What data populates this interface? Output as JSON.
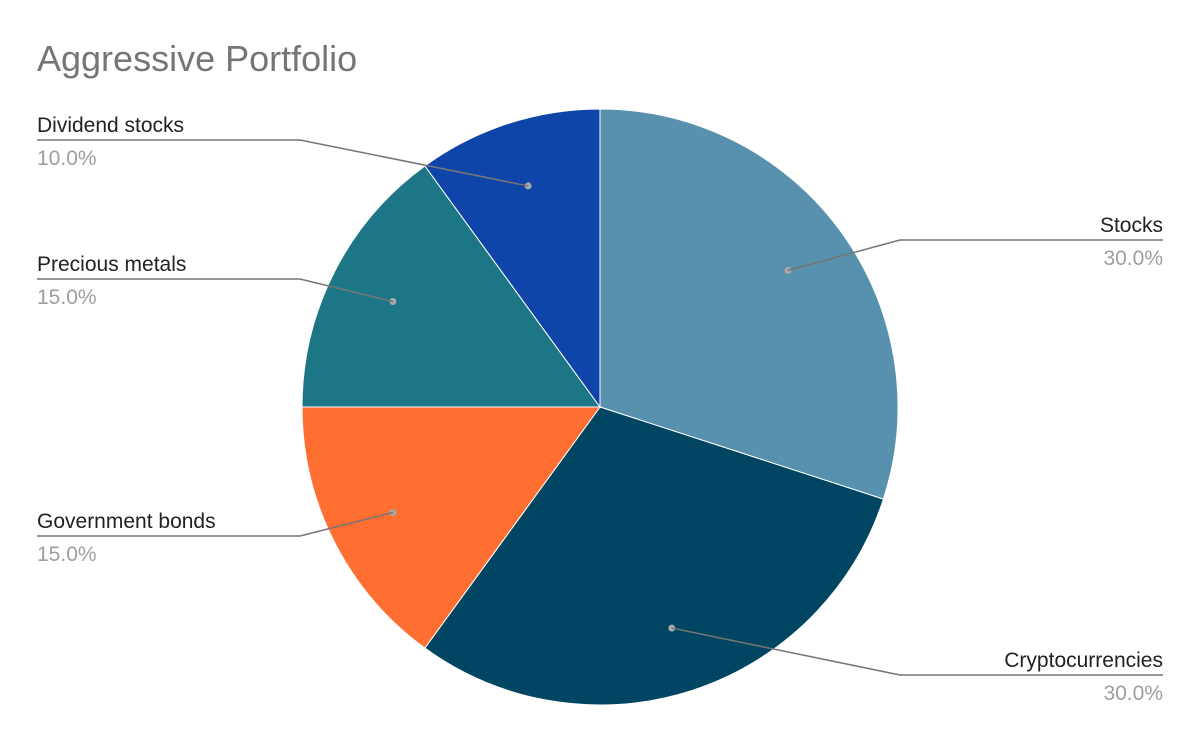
{
  "chart_data": {
    "type": "pie",
    "title": "Aggressive Portfolio",
    "slices": [
      {
        "label": "Stocks",
        "value": 30.0,
        "percent_label": "30.0%",
        "color": "#5891AD"
      },
      {
        "label": "Cryptocurrencies",
        "value": 30.0,
        "percent_label": "30.0%",
        "color": "#004561"
      },
      {
        "label": "Government bonds",
        "value": 15.0,
        "percent_label": "15.0%",
        "color": "#FF6F31"
      },
      {
        "label": "Precious metals",
        "value": 15.0,
        "percent_label": "15.0%",
        "color": "#1C7685"
      },
      {
        "label": "Dividend stocks",
        "value": 10.0,
        "percent_label": "10.0%",
        "color": "#0F45A8"
      }
    ],
    "start_angle_deg": 0,
    "direction": "clockwise",
    "label_style": "leader-lines",
    "label_color": "#222222",
    "percent_color": "#9E9E9E",
    "leader_color": "#757575"
  }
}
